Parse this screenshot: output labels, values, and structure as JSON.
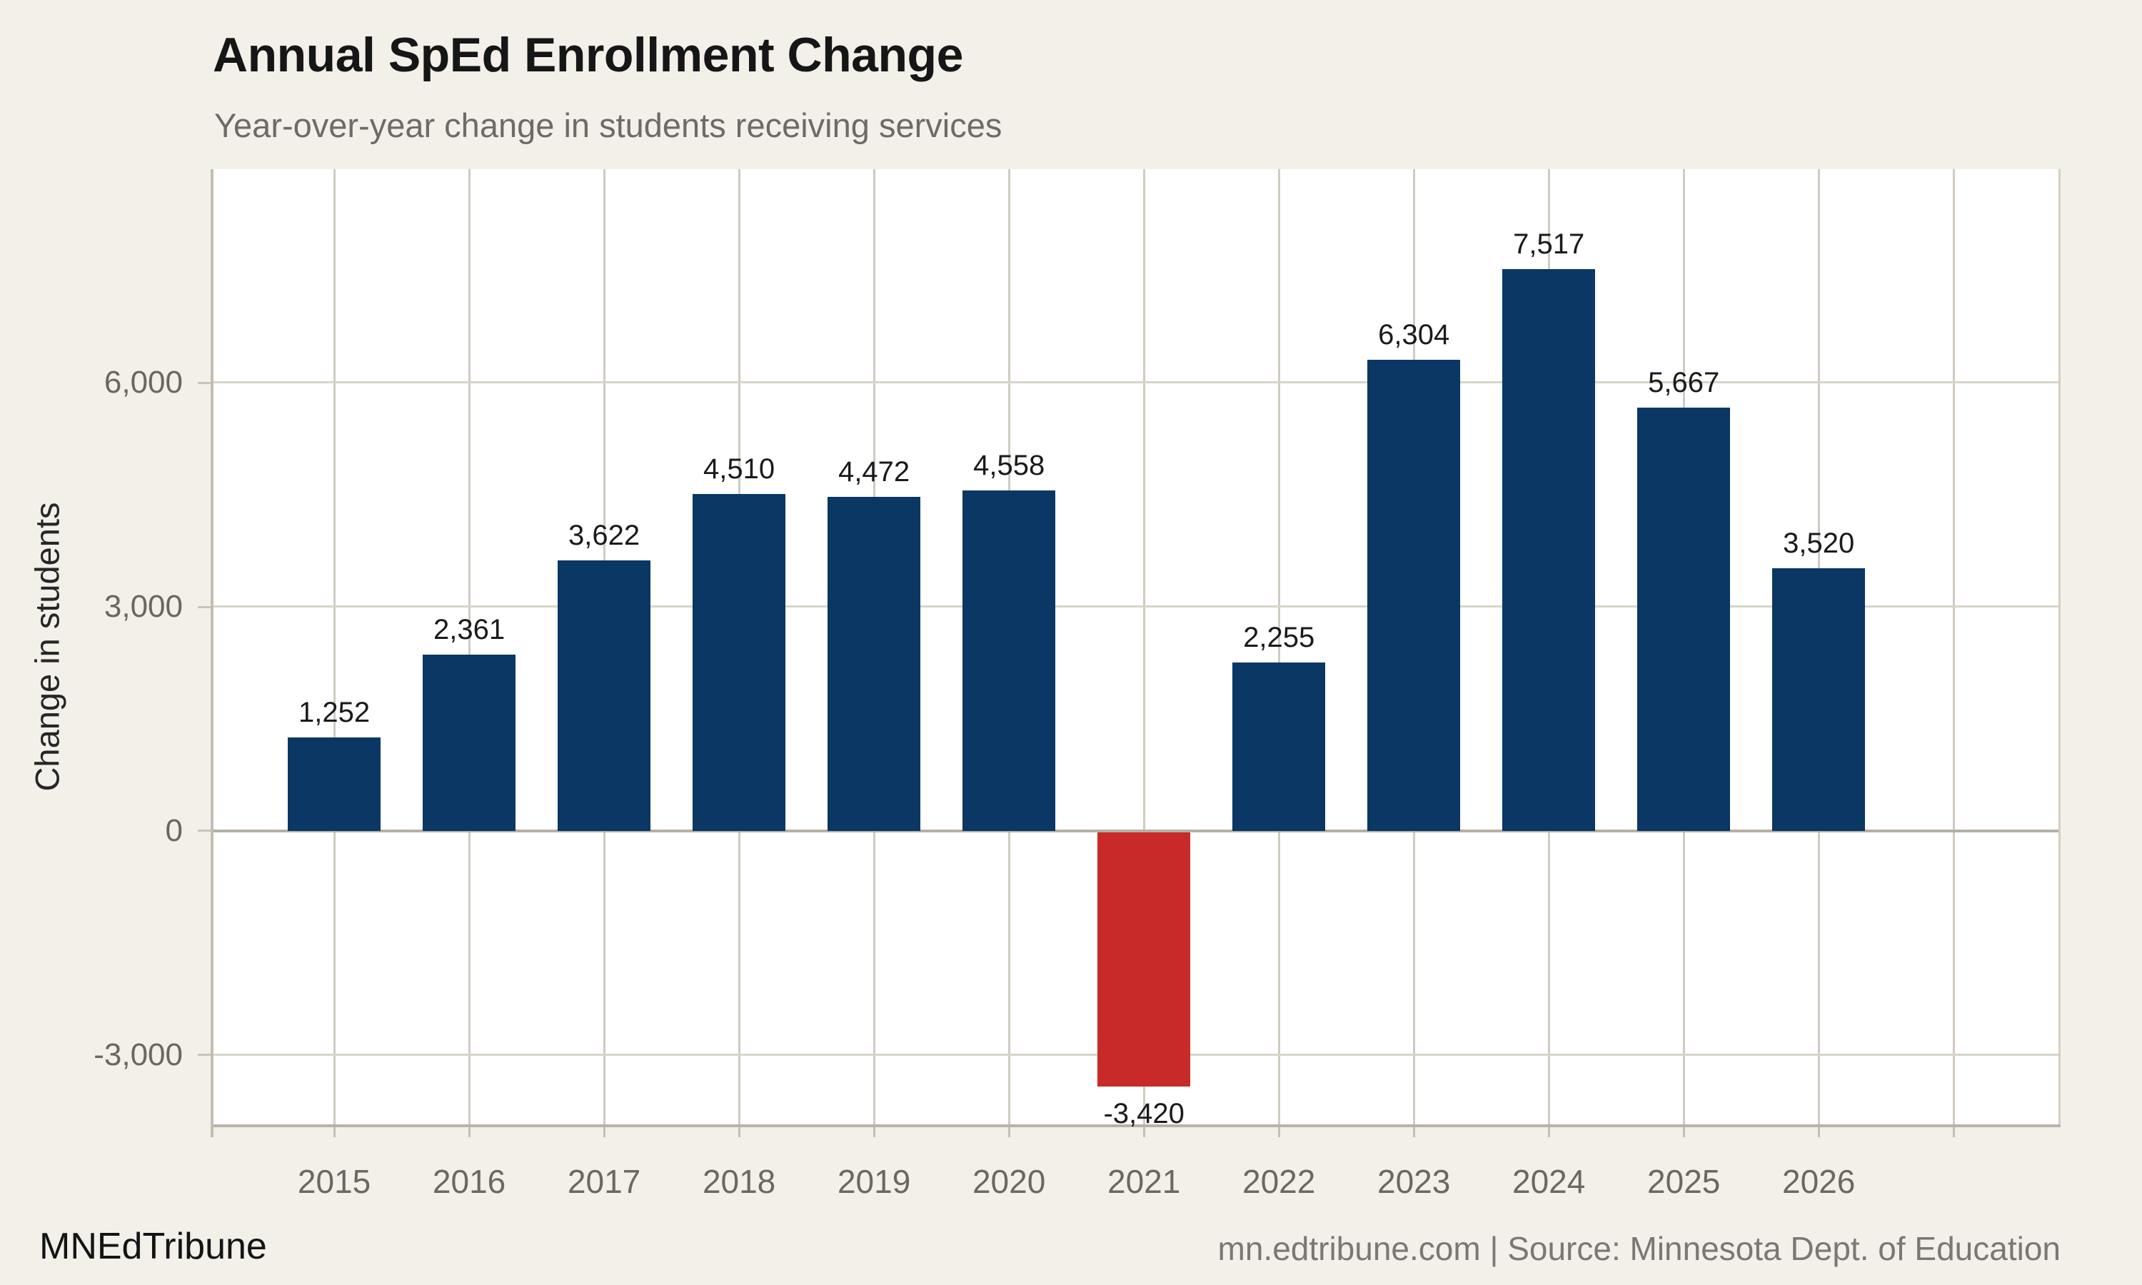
{
  "footer": {
    "brand": "MNEdTribune",
    "source": "mn.edtribune.com | Source: Minnesota Dept. of Education"
  },
  "chart_data": {
    "type": "bar",
    "title": "Annual SpEd Enrollment Change",
    "subtitle": "Year-over-year change in students receiving services",
    "xlabel": "",
    "ylabel": "Change in students",
    "categories": [
      "2015",
      "2016",
      "2017",
      "2018",
      "2019",
      "2020",
      "2021",
      "2022",
      "2023",
      "2024",
      "2025",
      "2026"
    ],
    "values": [
      1252,
      2361,
      3622,
      4510,
      4472,
      4558,
      -3420,
      2255,
      6304,
      7517,
      5667,
      3520
    ],
    "bar_labels": [
      "1,252",
      "2,361",
      "3,622",
      "4,510",
      "4,472",
      "4,558",
      "-3,420",
      "2,255",
      "6,304",
      "7,517",
      "5,667",
      "3,520"
    ],
    "yticks": [
      {
        "value": 6000,
        "label": "6,000"
      },
      {
        "value": 3000,
        "label": "3,000"
      },
      {
        "value": 0,
        "label": "0"
      },
      {
        "value": -3000,
        "label": "-3,000"
      }
    ],
    "ylim": [
      -3930,
      8860
    ],
    "grid": true,
    "legend": false,
    "plot_background": "#FFFFFF",
    "page_background": "#F3F0EA",
    "colors": {
      "positive": "#0A3763",
      "negative": "#C72A28"
    }
  }
}
